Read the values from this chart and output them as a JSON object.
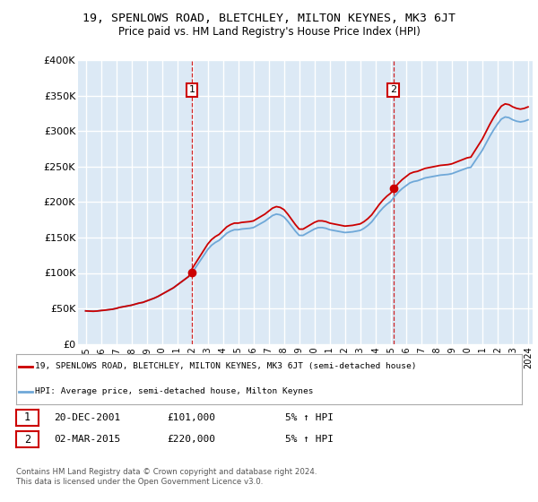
{
  "title": "19, SPENLOWS ROAD, BLETCHLEY, MILTON KEYNES, MK3 6JT",
  "subtitle": "Price paid vs. HM Land Registry's House Price Index (HPI)",
  "x_start_year": 1995,
  "x_end_year": 2024,
  "y_min": 0,
  "y_max": 400000,
  "y_ticks": [
    0,
    50000,
    100000,
    150000,
    200000,
    250000,
    300000,
    350000,
    400000
  ],
  "y_tick_labels": [
    "£0",
    "£50K",
    "£100K",
    "£150K",
    "£200K",
    "£250K",
    "£300K",
    "£350K",
    "£400K"
  ],
  "bg_color": "#dce9f5",
  "grid_color": "#ffffff",
  "sale1_date": "20-DEC-2001",
  "sale1_year": 2001.97,
  "sale1_price": 101000,
  "sale1_label": "1",
  "sale2_date": "02-MAR-2015",
  "sale2_year": 2015.17,
  "sale2_price": 220000,
  "sale2_label": "2",
  "hpi_color": "#6fa8d8",
  "price_color": "#cc0000",
  "vline_color": "#cc0000",
  "legend_label_price": "19, SPENLOWS ROAD, BLETCHLEY, MILTON KEYNES, MK3 6JT (semi-detached house)",
  "legend_label_hpi": "HPI: Average price, semi-detached house, Milton Keynes",
  "footer1": "Contains HM Land Registry data © Crown copyright and database right 2024.",
  "footer2": "This data is licensed under the Open Government Licence v3.0.",
  "sale1_info": "5% ↑ HPI",
  "sale2_info": "5% ↑ HPI",
  "hpi_data": [
    [
      1995.0,
      46500
    ],
    [
      1995.25,
      46200
    ],
    [
      1995.5,
      46000
    ],
    [
      1995.75,
      46300
    ],
    [
      1996.0,
      47000
    ],
    [
      1996.25,
      47500
    ],
    [
      1996.5,
      48200
    ],
    [
      1996.75,
      48800
    ],
    [
      1997.0,
      50000
    ],
    [
      1997.25,
      51500
    ],
    [
      1997.5,
      52500
    ],
    [
      1997.75,
      53500
    ],
    [
      1998.0,
      54500
    ],
    [
      1998.25,
      56000
    ],
    [
      1998.5,
      57500
    ],
    [
      1998.75,
      58500
    ],
    [
      1999.0,
      60500
    ],
    [
      1999.25,
      62500
    ],
    [
      1999.5,
      64500
    ],
    [
      1999.75,
      67000
    ],
    [
      2000.0,
      70000
    ],
    [
      2000.25,
      73000
    ],
    [
      2000.5,
      76000
    ],
    [
      2000.75,
      79000
    ],
    [
      2001.0,
      83000
    ],
    [
      2001.25,
      87000
    ],
    [
      2001.5,
      91000
    ],
    [
      2001.75,
      95000
    ],
    [
      2002.0,
      101000
    ],
    [
      2002.25,
      109000
    ],
    [
      2002.5,
      117000
    ],
    [
      2002.75,
      125000
    ],
    [
      2003.0,
      133000
    ],
    [
      2003.25,
      139000
    ],
    [
      2003.5,
      143000
    ],
    [
      2003.75,
      146000
    ],
    [
      2004.0,
      151000
    ],
    [
      2004.25,
      156000
    ],
    [
      2004.5,
      159000
    ],
    [
      2004.75,
      161000
    ],
    [
      2005.0,
      161000
    ],
    [
      2005.25,
      162000
    ],
    [
      2005.5,
      162500
    ],
    [
      2005.75,
      163000
    ],
    [
      2006.0,
      164000
    ],
    [
      2006.25,
      167000
    ],
    [
      2006.5,
      170000
    ],
    [
      2006.75,
      173000
    ],
    [
      2007.0,
      177000
    ],
    [
      2007.25,
      181000
    ],
    [
      2007.5,
      183000
    ],
    [
      2007.75,
      182000
    ],
    [
      2008.0,
      179000
    ],
    [
      2008.25,
      173000
    ],
    [
      2008.5,
      166000
    ],
    [
      2008.75,
      159000
    ],
    [
      2009.0,
      153000
    ],
    [
      2009.25,
      153000
    ],
    [
      2009.5,
      156000
    ],
    [
      2009.75,
      159000
    ],
    [
      2010.0,
      162000
    ],
    [
      2010.25,
      164000
    ],
    [
      2010.5,
      164000
    ],
    [
      2010.75,
      163000
    ],
    [
      2011.0,
      161000
    ],
    [
      2011.25,
      160000
    ],
    [
      2011.5,
      159000
    ],
    [
      2011.75,
      158000
    ],
    [
      2012.0,
      157000
    ],
    [
      2012.25,
      157500
    ],
    [
      2012.5,
      158000
    ],
    [
      2012.75,
      159000
    ],
    [
      2013.0,
      160000
    ],
    [
      2013.25,
      163000
    ],
    [
      2013.5,
      167000
    ],
    [
      2013.75,
      172000
    ],
    [
      2014.0,
      179000
    ],
    [
      2014.25,
      186000
    ],
    [
      2014.5,
      192000
    ],
    [
      2014.75,
      197000
    ],
    [
      2015.0,
      201000
    ],
    [
      2015.25,
      208000
    ],
    [
      2015.5,
      214000
    ],
    [
      2015.75,
      219000
    ],
    [
      2016.0,
      223000
    ],
    [
      2016.25,
      227000
    ],
    [
      2016.5,
      229000
    ],
    [
      2016.75,
      230000
    ],
    [
      2017.0,
      232000
    ],
    [
      2017.25,
      234000
    ],
    [
      2017.5,
      235000
    ],
    [
      2017.75,
      236000
    ],
    [
      2018.0,
      237000
    ],
    [
      2018.25,
      238000
    ],
    [
      2018.5,
      238500
    ],
    [
      2018.75,
      239000
    ],
    [
      2019.0,
      240000
    ],
    [
      2019.25,
      242000
    ],
    [
      2019.5,
      244000
    ],
    [
      2019.75,
      246000
    ],
    [
      2020.0,
      248000
    ],
    [
      2020.25,
      249000
    ],
    [
      2020.5,
      257000
    ],
    [
      2020.75,
      265000
    ],
    [
      2021.0,
      273000
    ],
    [
      2021.25,
      283000
    ],
    [
      2021.5,
      293000
    ],
    [
      2021.75,
      302000
    ],
    [
      2022.0,
      310000
    ],
    [
      2022.25,
      317000
    ],
    [
      2022.5,
      320000
    ],
    [
      2022.75,
      319000
    ],
    [
      2023.0,
      316000
    ],
    [
      2023.25,
      314000
    ],
    [
      2023.5,
      313000
    ],
    [
      2023.75,
      314000
    ],
    [
      2024.0,
      316000
    ]
  ]
}
